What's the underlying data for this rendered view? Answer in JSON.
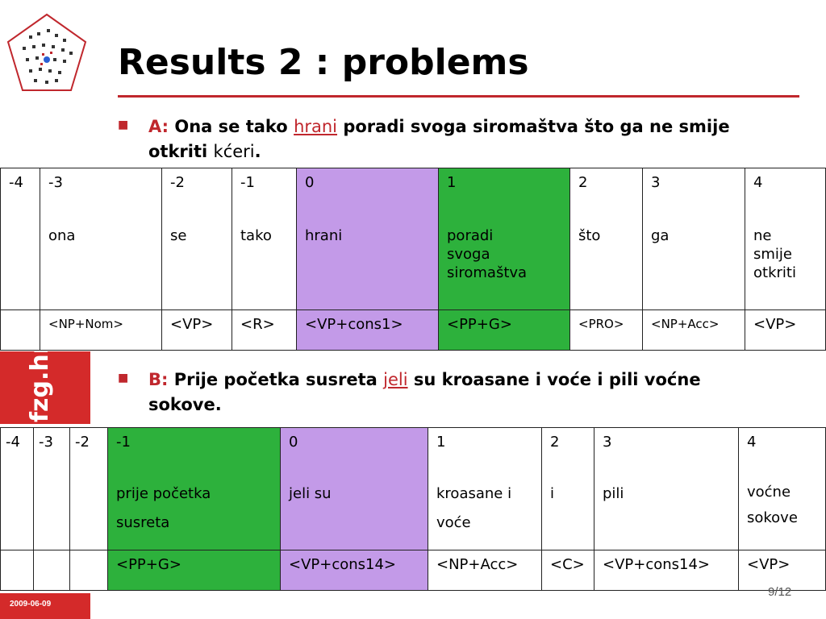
{
  "title": "Results 2 : problems",
  "bullet_a": {
    "label": "A:",
    "pre": "Ona se tako",
    "verb": "hrani",
    "post": "poradi svoga siromaštva što ga ne smije",
    "line2_bold": "otkriti",
    "line2_plain": "kćeri",
    "line2_end": "."
  },
  "table_a": {
    "positions": [
      "-4",
      "-3",
      "-2",
      "-1",
      "0",
      "1",
      "2",
      "3",
      "4"
    ],
    "words": [
      "",
      "ona",
      "se",
      "tako",
      "hrani",
      "poradi svoga siromaštva",
      "što",
      "ga",
      "ne smije otkriti"
    ],
    "tags": [
      "",
      "<NP+Nom>",
      "<VP>",
      "<R>",
      "<VP+cons1>",
      "<PP+G>",
      "<PRO>",
      "<NP+Acc>",
      "<VP>"
    ]
  },
  "bullet_b": {
    "label": "B:",
    "pre": "Prije početka susreta",
    "verb": "jeli",
    "post": "su kroasane i voće i pili voćne",
    "line2": "sokove."
  },
  "table_b": {
    "positions": [
      "-4",
      "-3",
      "-2",
      "-1",
      "0",
      "1",
      "2",
      "3",
      "4"
    ],
    "words": [
      "",
      "",
      "",
      "prije početka susreta",
      "jeli su",
      "kroasane i voće",
      "i",
      "pili",
      "voćne sokove"
    ],
    "tags": [
      "",
      "",
      "",
      "<PP+G>",
      "<VP+cons14>",
      "<NP+Acc>",
      "<C>",
      "<VP+cons14>",
      "<VP>"
    ]
  },
  "sidebar_text": "fzg.hr",
  "date": "2009-06-09",
  "page": "9/12",
  "colors": {
    "accent": "#c0272d",
    "head_cell": "#c39ae8",
    "dep_cell": "#2db13c"
  },
  "icons": {
    "logo": "ffzg-pentagon-logo"
  }
}
